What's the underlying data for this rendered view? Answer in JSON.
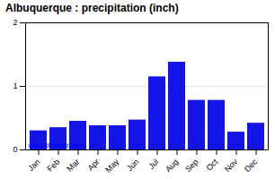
{
  "chart_data": {
    "type": "bar",
    "title": "Albuquerque : precipitation (inch)",
    "categories": [
      "Jan",
      "Feb",
      "Mar",
      "Apr",
      "May",
      "Jun",
      "Jul",
      "Aug",
      "Sep",
      "Oct",
      "Nov",
      "Dec"
    ],
    "values": [
      0.3,
      0.35,
      0.45,
      0.38,
      0.38,
      0.47,
      1.15,
      1.38,
      0.78,
      0.78,
      0.28,
      0.42
    ],
    "color": "#1414e6",
    "ylim": [
      0,
      2.0
    ],
    "yticks": [
      0,
      1,
      2
    ],
    "grid": true,
    "annotations": [
      "www.allmetsat.com"
    ]
  }
}
